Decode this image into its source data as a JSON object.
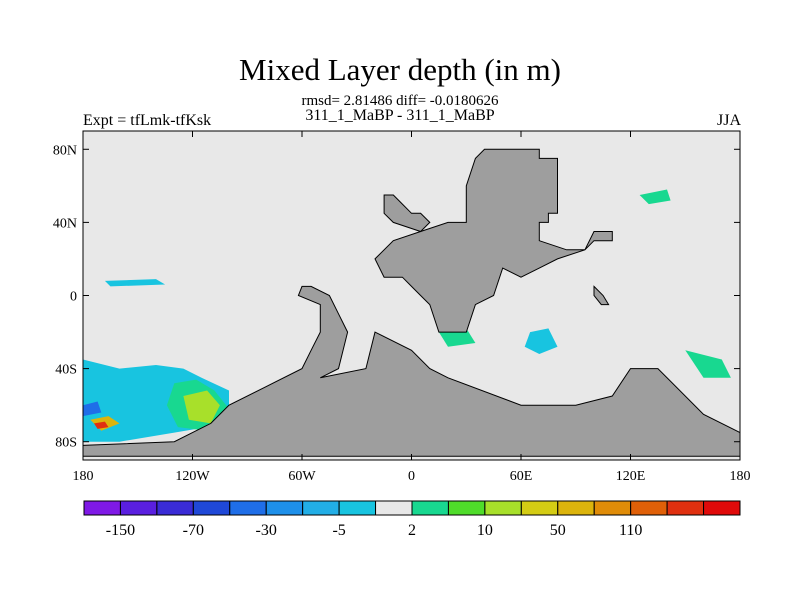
{
  "title": "Mixed Layer depth (in m)",
  "subtitle": "rmsd= 2.81486 diff= -0.0180626",
  "experiment": "311_1_MaBP - 311_1_MaBP",
  "left_label": "Expt = tfLmk-tfKsk",
  "right_label": "JJA",
  "colors": {
    "land": "#9e9e9e",
    "ocean_neutral": "#e8e8e8",
    "frame": "#000000"
  },
  "chart_data": {
    "type": "heatmap",
    "projection": "cylindrical-equidistant",
    "lon_range": [
      -180,
      180
    ],
    "lat_range": [
      -90,
      90
    ],
    "x_ticks": [
      {
        "value": -180,
        "label": "180"
      },
      {
        "value": -120,
        "label": "120W"
      },
      {
        "value": -60,
        "label": "60W"
      },
      {
        "value": 0,
        "label": "0"
      },
      {
        "value": 60,
        "label": "60E"
      },
      {
        "value": 120,
        "label": "120E"
      },
      {
        "value": 180,
        "label": "180"
      }
    ],
    "y_ticks": [
      {
        "value": 80,
        "label": "80N"
      },
      {
        "value": 40,
        "label": "40N"
      },
      {
        "value": 0,
        "label": "0"
      },
      {
        "value": -40,
        "label": "40S"
      },
      {
        "value": -80,
        "label": "80S"
      }
    ],
    "colorbar": {
      "colors": [
        "#7f19e6",
        "#5a1fe0",
        "#3a2bd6",
        "#1f48d8",
        "#1f6ee8",
        "#1e90ea",
        "#22aee6",
        "#18c4e0",
        "#e8e8e8",
        "#18d890",
        "#4fdc2a",
        "#a8e02a",
        "#d4cc14",
        "#dcb40c",
        "#e08c08",
        "#e06008",
        "#e03010",
        "#e00a0a"
      ],
      "labels": [
        {
          "after_box": 1,
          "label": "-150"
        },
        {
          "after_box": 3,
          "label": "-70"
        },
        {
          "after_box": 5,
          "label": "-30"
        },
        {
          "after_box": 7,
          "label": "-5"
        },
        {
          "after_box": 9,
          "label": "2"
        },
        {
          "after_box": 11,
          "label": "10"
        },
        {
          "after_box": 13,
          "label": "50"
        },
        {
          "after_box": 15,
          "label": "110"
        }
      ]
    },
    "land_masks": [
      {
        "name": "eurasia-africa-land",
        "coords": [
          [
            40,
            80
          ],
          [
            70,
            80
          ],
          [
            70,
            75
          ],
          [
            80,
            75
          ],
          [
            80,
            45
          ],
          [
            75,
            45
          ],
          [
            75,
            40
          ],
          [
            70,
            40
          ],
          [
            70,
            30
          ],
          [
            85,
            25
          ],
          [
            95,
            25
          ],
          [
            100,
            35
          ],
          [
            110,
            35
          ],
          [
            110,
            30
          ],
          [
            100,
            30
          ],
          [
            95,
            25
          ],
          [
            80,
            20
          ],
          [
            70,
            15
          ],
          [
            60,
            10
          ],
          [
            50,
            15
          ],
          [
            45,
            0
          ],
          [
            35,
            -5
          ],
          [
            30,
            -20
          ],
          [
            15,
            -20
          ],
          [
            10,
            -5
          ],
          [
            5,
            0
          ],
          [
            0,
            5
          ],
          [
            -5,
            10
          ],
          [
            -15,
            10
          ],
          [
            -20,
            20
          ],
          [
            -10,
            30
          ],
          [
            5,
            35
          ],
          [
            20,
            40
          ],
          [
            30,
            40
          ],
          [
            30,
            60
          ],
          [
            35,
            75
          ],
          [
            40,
            80
          ]
        ]
      },
      {
        "name": "antarctica-africa-land",
        "coords": [
          [
            -50,
            -45
          ],
          [
            -40,
            -40
          ],
          [
            -35,
            -20
          ],
          [
            -40,
            -10
          ],
          [
            -45,
            0
          ],
          [
            -55,
            5
          ],
          [
            -60,
            5
          ],
          [
            -62,
            0
          ],
          [
            -50,
            -5
          ],
          [
            -50,
            -20
          ],
          [
            -55,
            -30
          ],
          [
            -60,
            -40
          ],
          [
            -80,
            -50
          ],
          [
            -100,
            -60
          ],
          [
            -110,
            -70
          ],
          [
            -120,
            -75
          ],
          [
            -130,
            -80
          ],
          [
            -180,
            -82
          ],
          [
            -180,
            -88
          ],
          [
            180,
            -88
          ],
          [
            180,
            -75
          ],
          [
            160,
            -65
          ],
          [
            135,
            -40
          ],
          [
            120,
            -40
          ],
          [
            110,
            -55
          ],
          [
            90,
            -60
          ],
          [
            60,
            -60
          ],
          [
            20,
            -45
          ],
          [
            10,
            -40
          ],
          [
            0,
            -30
          ],
          [
            -20,
            -20
          ],
          [
            -25,
            -40
          ],
          [
            -50,
            -45
          ]
        ]
      },
      {
        "name": "hudson-land",
        "coords": [
          [
            -10,
            55
          ],
          [
            -5,
            50
          ],
          [
            0,
            45
          ],
          [
            5,
            45
          ],
          [
            10,
            40
          ],
          [
            5,
            35
          ],
          [
            -10,
            40
          ],
          [
            -15,
            45
          ],
          [
            -15,
            55
          ],
          [
            -10,
            55
          ]
        ]
      },
      {
        "name": "small-island-land",
        "coords": [
          [
            100,
            5
          ],
          [
            105,
            0
          ],
          [
            108,
            -5
          ],
          [
            104,
            -5
          ],
          [
            100,
            0
          ],
          [
            100,
            5
          ]
        ]
      }
    ],
    "anomaly_patches": [
      {
        "name": "southern-ocean-blue-anomaly",
        "color": "#18c4e0",
        "coords": [
          [
            -180,
            -35
          ],
          [
            -160,
            -40
          ],
          [
            -140,
            -38
          ],
          [
            -125,
            -40
          ],
          [
            -115,
            -45
          ],
          [
            -100,
            -52
          ],
          [
            -100,
            -70
          ],
          [
            -130,
            -75
          ],
          [
            -160,
            -80
          ],
          [
            -180,
            -80
          ]
        ]
      },
      {
        "name": "southern-ocean-green-anomaly",
        "color": "#18d890",
        "coords": [
          [
            -130,
            -48
          ],
          [
            -118,
            -46
          ],
          [
            -108,
            -52
          ],
          [
            -100,
            -62
          ],
          [
            -112,
            -74
          ],
          [
            -128,
            -72
          ],
          [
            -134,
            -60
          ]
        ]
      },
      {
        "name": "southern-ocean-yellow-anomaly",
        "color": "#a8e02a",
        "coords": [
          [
            -125,
            -55
          ],
          [
            -112,
            -52
          ],
          [
            -105,
            -60
          ],
          [
            -110,
            -70
          ],
          [
            -122,
            -68
          ]
        ]
      },
      {
        "name": "southern-ocean-orange-anomaly",
        "color": "#dcb40c",
        "coords": [
          [
            -176,
            -68
          ],
          [
            -166,
            -66
          ],
          [
            -160,
            -70
          ],
          [
            -170,
            -74
          ]
        ]
      },
      {
        "name": "southern-ocean-red-anomaly",
        "color": "#e03010",
        "coords": [
          [
            -174,
            -70
          ],
          [
            -168,
            -69
          ],
          [
            -166,
            -72
          ],
          [
            -172,
            -73
          ]
        ]
      },
      {
        "name": "southern-ocean-dark-blue-anomaly",
        "color": "#1f6ee8",
        "coords": [
          [
            -180,
            -60
          ],
          [
            -172,
            -58
          ],
          [
            -170,
            -64
          ],
          [
            -180,
            -66
          ]
        ]
      },
      {
        "name": "equatorial-pacific-anomaly",
        "color": "#18c4e0",
        "coords": [
          [
            -168,
            8
          ],
          [
            -140,
            9
          ],
          0,
          [
            -135,
            6
          ],
          [
            -165,
            5
          ]
        ]
      },
      {
        "name": "indian-ocean-anomaly",
        "color": "#18c4e0",
        "coords": [
          [
            65,
            -20
          ],
          [
            75,
            -18
          ],
          [
            80,
            -28
          ],
          [
            70,
            -32
          ],
          [
            62,
            -28
          ]
        ]
      },
      {
        "name": "north-pacific-anomaly",
        "color": "#18d890",
        "coords": [
          [
            125,
            55
          ],
          [
            140,
            58
          ],
          [
            142,
            52
          ],
          [
            130,
            50
          ]
        ]
      },
      {
        "name": "south-atlantic-anomaly",
        "color": "#18d890",
        "coords": [
          [
            15,
            -20
          ],
          [
            30,
            -18
          ],
          [
            35,
            -26
          ],
          [
            20,
            -28
          ]
        ]
      },
      {
        "name": "south-pacific-green-anomaly",
        "color": "#18d890",
        "coords": [
          [
            150,
            -30
          ],
          [
            170,
            -35
          ],
          [
            175,
            -45
          ],
          [
            160,
            -45
          ]
        ]
      }
    ]
  }
}
